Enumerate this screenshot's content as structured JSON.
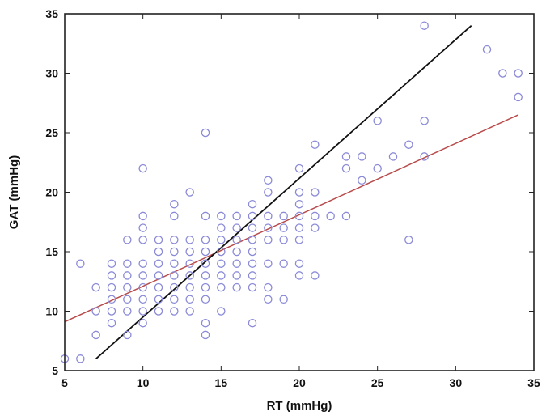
{
  "chart_data": {
    "type": "scatter",
    "title": "",
    "xlabel": "RT (mmHg)",
    "ylabel": "GAT (mmHg)",
    "xlim": [
      5,
      35
    ],
    "ylim": [
      5,
      35
    ],
    "xticks": [
      5,
      10,
      15,
      20,
      25,
      30,
      35
    ],
    "yticks": [
      5,
      10,
      15,
      20,
      25,
      30,
      35
    ],
    "grid": false,
    "legend": "none",
    "marker": "open-circle",
    "colors": {
      "points": "#8a8ad8",
      "fit_line": "#b84a4a",
      "identity_line": "#111111",
      "axes": "#222222"
    },
    "series": [
      {
        "points": [
          [
            5,
            6
          ],
          [
            6,
            6
          ],
          [
            6,
            14
          ],
          [
            7,
            8
          ],
          [
            7,
            10
          ],
          [
            7,
            12
          ],
          [
            8,
            9
          ],
          [
            8,
            10
          ],
          [
            8,
            11
          ],
          [
            8,
            12
          ],
          [
            8,
            13
          ],
          [
            8,
            14
          ],
          [
            9,
            8
          ],
          [
            9,
            10
          ],
          [
            9,
            11
          ],
          [
            9,
            12
          ],
          [
            9,
            13
          ],
          [
            9,
            14
          ],
          [
            9,
            16
          ],
          [
            10,
            9
          ],
          [
            10,
            10
          ],
          [
            10,
            11
          ],
          [
            10,
            12
          ],
          [
            10,
            13
          ],
          [
            10,
            14
          ],
          [
            10,
            16
          ],
          [
            10,
            17
          ],
          [
            10,
            18
          ],
          [
            10,
            22
          ],
          [
            11,
            10
          ],
          [
            11,
            11
          ],
          [
            11,
            12
          ],
          [
            11,
            13
          ],
          [
            11,
            14
          ],
          [
            11,
            15
          ],
          [
            11,
            16
          ],
          [
            12,
            10
          ],
          [
            12,
            11
          ],
          [
            12,
            12
          ],
          [
            12,
            13
          ],
          [
            12,
            14
          ],
          [
            12,
            15
          ],
          [
            12,
            16
          ],
          [
            12,
            18
          ],
          [
            12,
            19
          ],
          [
            13,
            10
          ],
          [
            13,
            11
          ],
          [
            13,
            12
          ],
          [
            13,
            13
          ],
          [
            13,
            14
          ],
          [
            13,
            15
          ],
          [
            13,
            16
          ],
          [
            13,
            20
          ],
          [
            14,
            8
          ],
          [
            14,
            9
          ],
          [
            14,
            11
          ],
          [
            14,
            12
          ],
          [
            14,
            13
          ],
          [
            14,
            14
          ],
          [
            14,
            15
          ],
          [
            14,
            16
          ],
          [
            14,
            18
          ],
          [
            14,
            25
          ],
          [
            15,
            10
          ],
          [
            15,
            12
          ],
          [
            15,
            13
          ],
          [
            15,
            14
          ],
          [
            15,
            15
          ],
          [
            15,
            16
          ],
          [
            15,
            17
          ],
          [
            15,
            18
          ],
          [
            16,
            12
          ],
          [
            16,
            13
          ],
          [
            16,
            14
          ],
          [
            16,
            15
          ],
          [
            16,
            16
          ],
          [
            16,
            17
          ],
          [
            16,
            18
          ],
          [
            17,
            9
          ],
          [
            17,
            12
          ],
          [
            17,
            13
          ],
          [
            17,
            14
          ],
          [
            17,
            15
          ],
          [
            17,
            16
          ],
          [
            17,
            17
          ],
          [
            17,
            18
          ],
          [
            17,
            19
          ],
          [
            18,
            11
          ],
          [
            18,
            12
          ],
          [
            18,
            14
          ],
          [
            18,
            16
          ],
          [
            18,
            17
          ],
          [
            18,
            18
          ],
          [
            18,
            20
          ],
          [
            18,
            21
          ],
          [
            19,
            11
          ],
          [
            19,
            14
          ],
          [
            19,
            16
          ],
          [
            19,
            17
          ],
          [
            19,
            18
          ],
          [
            20,
            13
          ],
          [
            20,
            14
          ],
          [
            20,
            16
          ],
          [
            20,
            17
          ],
          [
            20,
            18
          ],
          [
            20,
            19
          ],
          [
            20,
            20
          ],
          [
            20,
            22
          ],
          [
            21,
            13
          ],
          [
            21,
            17
          ],
          [
            21,
            18
          ],
          [
            21,
            20
          ],
          [
            21,
            24
          ],
          [
            22,
            18
          ],
          [
            23,
            18
          ],
          [
            23,
            22
          ],
          [
            23,
            23
          ],
          [
            24,
            21
          ],
          [
            24,
            23
          ],
          [
            25,
            22
          ],
          [
            25,
            26
          ],
          [
            26,
            23
          ],
          [
            27,
            16
          ],
          [
            27,
            24
          ],
          [
            28,
            23
          ],
          [
            28,
            26
          ],
          [
            28,
            34
          ],
          [
            32,
            32
          ],
          [
            33,
            30
          ],
          [
            34,
            28
          ],
          [
            34,
            30
          ]
        ]
      }
    ],
    "lines": [
      {
        "role": "regression",
        "color": "#b84a4a",
        "x": [
          5,
          34
        ],
        "y": [
          9.1,
          26.5
        ]
      },
      {
        "role": "identity",
        "color": "#111111",
        "x": [
          7,
          31
        ],
        "y": [
          6,
          34
        ]
      }
    ]
  }
}
